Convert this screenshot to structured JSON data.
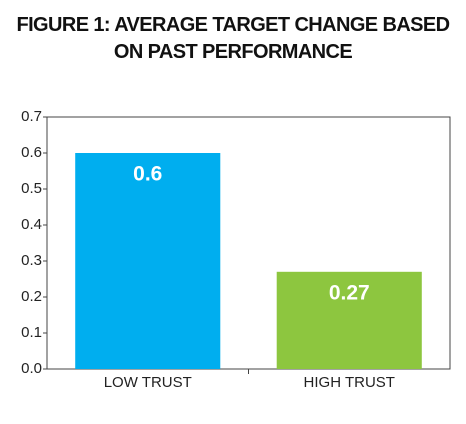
{
  "chart_data": {
    "type": "bar",
    "title": "FIGURE 1: AVERAGE TARGET CHANGE BASED ON PAST PERFORMANCE",
    "categories": [
      "LOW TRUST",
      "HIGH TRUST"
    ],
    "values": [
      0.6,
      0.27
    ],
    "colors": [
      "#00aeef",
      "#8dc63f"
    ],
    "ylim": [
      0,
      0.7
    ],
    "yticks": [
      {
        "value": 0,
        "label": "0.0"
      },
      0.1,
      0.2,
      0.3,
      0.4,
      0.5,
      0.6,
      0.7
    ],
    "data_labels": true
  }
}
